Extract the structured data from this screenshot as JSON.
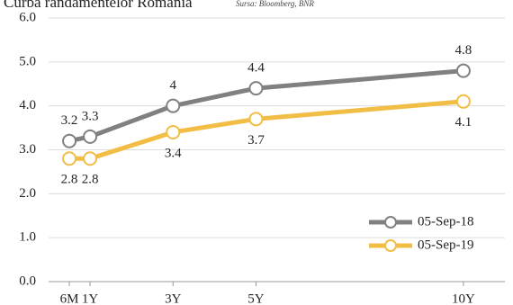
{
  "chart_data": {
    "type": "line",
    "title": "Curba randamentelor România",
    "subtitle": "Sursa: Bloomberg, BNR",
    "x": [
      0.5,
      1,
      3,
      5,
      10
    ],
    "xlim": [
      0,
      11
    ],
    "xticks": [
      {
        "value": 0.5,
        "label": "6M"
      },
      {
        "value": 1,
        "label": "1Y"
      },
      {
        "value": 3,
        "label": "3Y"
      },
      {
        "value": 5,
        "label": "5Y"
      },
      {
        "value": 10,
        "label": "10Y"
      }
    ],
    "ylim": [
      0,
      6
    ],
    "yticks": [
      {
        "value": 0,
        "label": "0.0"
      },
      {
        "value": 1,
        "label": "1.0"
      },
      {
        "value": 2,
        "label": "2.0"
      },
      {
        "value": 3,
        "label": "3.0"
      },
      {
        "value": 4,
        "label": "4.0"
      },
      {
        "value": 5,
        "label": "5.0"
      },
      {
        "value": 6,
        "label": "6.0"
      }
    ],
    "grid": true,
    "legend": "lower right",
    "series": [
      {
        "name": "05-Sep-18",
        "color": "#808080",
        "values": [
          3.2,
          3.3,
          4.0,
          4.4,
          4.8
        ]
      },
      {
        "name": "05-Sep-19",
        "color": "#f2bd45",
        "values": [
          2.8,
          2.8,
          3.4,
          3.7,
          4.1
        ]
      }
    ]
  }
}
